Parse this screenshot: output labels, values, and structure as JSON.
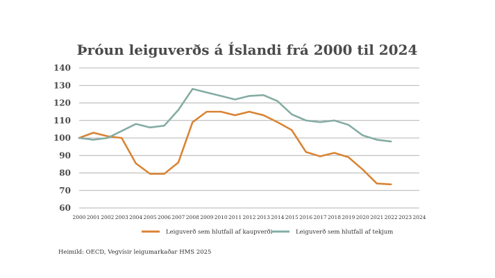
{
  "chart_data": {
    "type": "line",
    "title": "Þróun leiguverðs á Íslandi frá 2000 til 2024",
    "source": "Heimild:  OECD, Vegvísir leigumarkaðar HMS 2025",
    "ylim": [
      60,
      140
    ],
    "yticks": [
      "60",
      "70",
      "80",
      "90",
      "100",
      "110",
      "120",
      "130",
      "140"
    ],
    "x": [
      2000,
      2001,
      2002,
      2003,
      2004,
      2005,
      2006,
      2007,
      2008,
      2009,
      2010,
      2011,
      2012,
      2013,
      2014,
      2015,
      2016,
      2017,
      2018,
      2019,
      2020,
      2021,
      2022,
      2023,
      2024
    ],
    "xticks": [
      "2000",
      "2001",
      "2002",
      "2003",
      "2004",
      "2005",
      "2006",
      "2007",
      "2008",
      "2009",
      "2010",
      "2011",
      "2012",
      "2013",
      "2014",
      "2015",
      "2016",
      "2017",
      "2018",
      "2019",
      "2020",
      "2021",
      "2022",
      "2023",
      "2024"
    ],
    "grid": true,
    "legend_position": "bottom",
    "series": [
      {
        "name": "Leiguverð sem hlutfall af kaupverði",
        "color": "#d98434",
        "values": [
          100,
          103,
          101,
          100,
          85.5,
          79.5,
          79.5,
          86,
          109,
          115,
          115,
          113,
          115,
          113,
          109,
          104.5,
          92,
          89.5,
          91.5,
          89,
          82,
          74,
          73.5,
          null,
          null
        ]
      },
      {
        "name": "Leiguverð sem hlutfall af tekjum",
        "color": "#84aca3",
        "values": [
          100,
          99,
          100,
          104,
          108,
          106,
          107,
          116,
          128,
          126,
          124,
          122,
          124,
          124.5,
          121,
          113.5,
          110,
          109,
          110,
          107.5,
          101.5,
          99,
          98,
          null,
          null
        ]
      }
    ]
  }
}
